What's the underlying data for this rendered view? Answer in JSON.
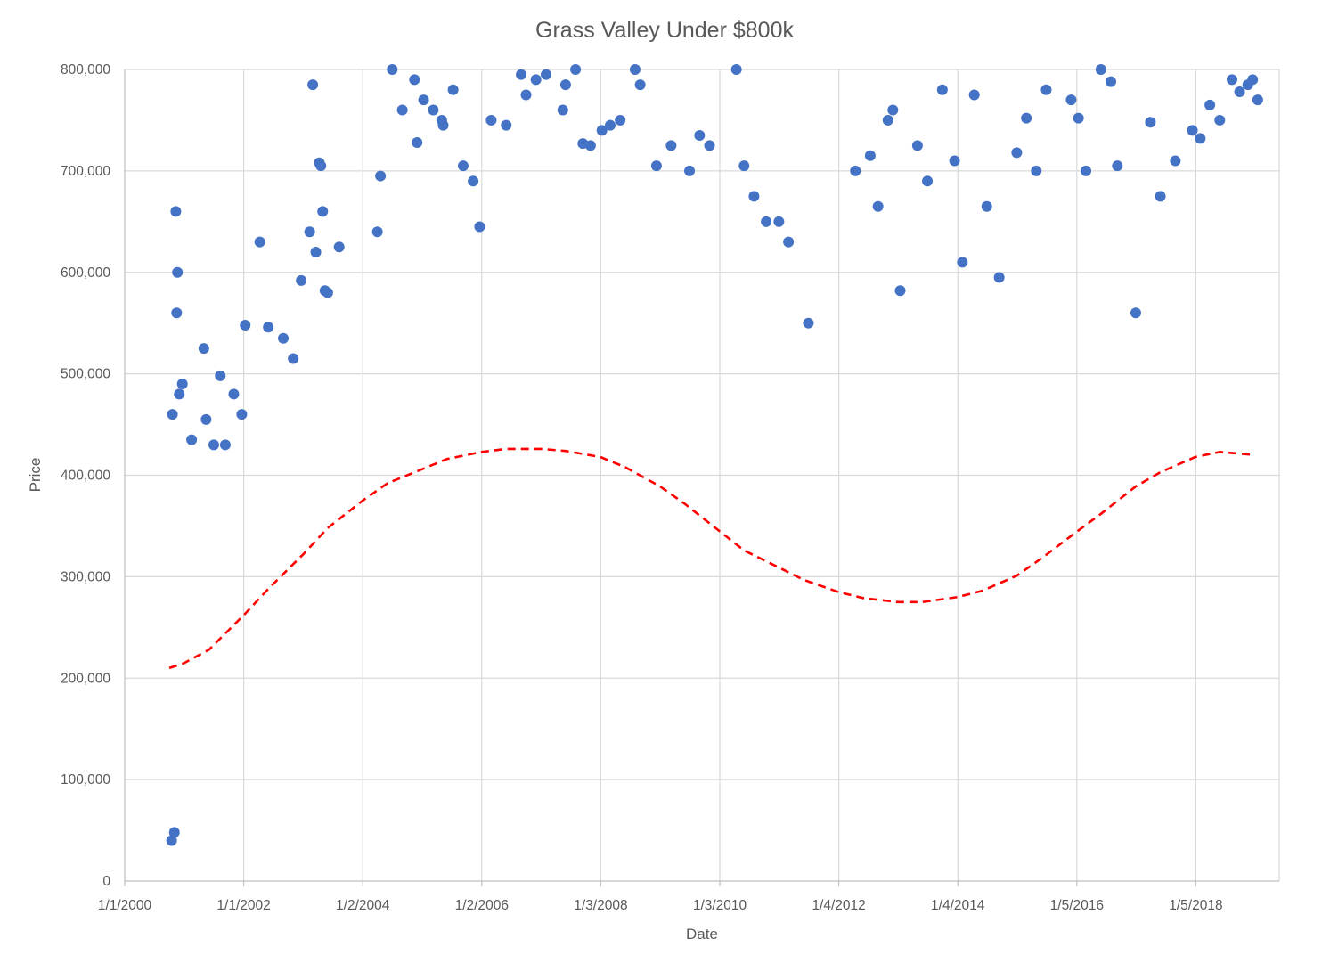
{
  "chart_data": {
    "type": "scatter",
    "title": "Grass Valley Under $800k",
    "xlabel": "Date",
    "ylabel": "Price",
    "xlim": [
      "1/1/2000",
      "6/1/2019"
    ],
    "ylim": [
      0,
      800000
    ],
    "x_ticks": [
      "1/1/2000",
      "1/1/2002",
      "1/2/2004",
      "1/2/2006",
      "1/3/2008",
      "1/3/2010",
      "1/4/2012",
      "1/4/2014",
      "1/5/2016",
      "1/5/2018"
    ],
    "y_ticks": [
      0,
      100000,
      200000,
      300000,
      400000,
      500000,
      600000,
      700000,
      800000
    ],
    "y_tick_labels": [
      "0",
      "100,000",
      "200,000",
      "300,000",
      "400,000",
      "500,000",
      "600,000",
      "700,000",
      "800,000"
    ],
    "grid": true,
    "legend": "none",
    "series": [
      {
        "marker_color": "#4472c4",
        "marker": "circle",
        "points": [
          [
            "10/15/2000",
            40000
          ],
          [
            "11/1/2000",
            48000
          ],
          [
            "11/10/2000",
            660000
          ],
          [
            "11/20/2000",
            600000
          ],
          [
            "11/15/2000",
            560000
          ],
          [
            "10/20/2000",
            460000
          ],
          [
            "12/1/2000",
            480000
          ],
          [
            "12/20/2000",
            490000
          ],
          [
            "2/15/2001",
            435000
          ],
          [
            "5/1/2001",
            525000
          ],
          [
            "5/15/2001",
            455000
          ],
          [
            "7/1/2001",
            430000
          ],
          [
            "8/10/2001",
            498000
          ],
          [
            "9/10/2001",
            430000
          ],
          [
            "11/1/2001",
            480000
          ],
          [
            "12/20/2001",
            460000
          ],
          [
            "1/10/2002",
            548000
          ],
          [
            "4/10/2002",
            630000
          ],
          [
            "6/1/2002",
            546000
          ],
          [
            "9/1/2002",
            535000
          ],
          [
            "11/1/2002",
            515000
          ],
          [
            "12/20/2002",
            592000
          ],
          [
            "2/10/2003",
            640000
          ],
          [
            "3/1/2003",
            785000
          ],
          [
            "3/20/2003",
            620000
          ],
          [
            "4/10/2003",
            708000
          ],
          [
            "4/20/2003",
            705000
          ],
          [
            "5/1/2003",
            660000
          ],
          [
            "5/15/2003",
            582000
          ],
          [
            "6/1/2003",
            580000
          ],
          [
            "8/10/2003",
            625000
          ],
          [
            "4/1/2004",
            640000
          ],
          [
            "4/20/2004",
            695000
          ],
          [
            "7/1/2004",
            800000
          ],
          [
            "9/1/2004",
            760000
          ],
          [
            "11/15/2004",
            790000
          ],
          [
            "12/1/2004",
            728000
          ],
          [
            "1/10/2005",
            770000
          ],
          [
            "3/10/2005",
            760000
          ],
          [
            "5/1/2005",
            750000
          ],
          [
            "5/10/2005",
            745000
          ],
          [
            "7/10/2005",
            780000
          ],
          [
            "9/10/2005",
            705000
          ],
          [
            "11/10/2005",
            690000
          ],
          [
            "12/20/2005",
            645000
          ],
          [
            "3/1/2006",
            750000
          ],
          [
            "6/1/2006",
            745000
          ],
          [
            "9/1/2006",
            795000
          ],
          [
            "10/1/2006",
            775000
          ],
          [
            "12/1/2006",
            790000
          ],
          [
            "2/1/2007",
            795000
          ],
          [
            "5/15/2007",
            760000
          ],
          [
            "6/1/2007",
            785000
          ],
          [
            "8/1/2007",
            800000
          ],
          [
            "9/15/2007",
            727000
          ],
          [
            "11/1/2007",
            725000
          ],
          [
            "1/10/2008",
            740000
          ],
          [
            "3/1/2008",
            745000
          ],
          [
            "5/1/2008",
            750000
          ],
          [
            "8/1/2008",
            800000
          ],
          [
            "9/1/2008",
            785000
          ],
          [
            "12/10/2008",
            705000
          ],
          [
            "3/10/2009",
            725000
          ],
          [
            "7/1/2009",
            700000
          ],
          [
            "9/1/2009",
            735000
          ],
          [
            "11/1/2009",
            725000
          ],
          [
            "4/15/2010",
            800000
          ],
          [
            "6/1/2010",
            705000
          ],
          [
            "8/1/2010",
            675000
          ],
          [
            "10/15/2010",
            650000
          ],
          [
            "1/1/2011",
            650000
          ],
          [
            "3/1/2011",
            630000
          ],
          [
            "7/1/2011",
            550000
          ],
          [
            "4/15/2012",
            700000
          ],
          [
            "7/15/2012",
            715000
          ],
          [
            "9/1/2012",
            665000
          ],
          [
            "11/1/2012",
            750000
          ],
          [
            "12/1/2012",
            760000
          ],
          [
            "1/15/2013",
            582000
          ],
          [
            "5/1/2013",
            725000
          ],
          [
            "7/1/2013",
            690000
          ],
          [
            "10/1/2013",
            780000
          ],
          [
            "12/15/2013",
            710000
          ],
          [
            "2/1/2014",
            610000
          ],
          [
            "4/15/2014",
            775000
          ],
          [
            "7/1/2014",
            665000
          ],
          [
            "9/15/2014",
            595000
          ],
          [
            "1/1/2015",
            718000
          ],
          [
            "3/1/2015",
            752000
          ],
          [
            "5/1/2015",
            700000
          ],
          [
            "7/1/2015",
            780000
          ],
          [
            "12/1/2015",
            770000
          ],
          [
            "1/15/2016",
            752000
          ],
          [
            "3/1/2016",
            700000
          ],
          [
            "6/1/2016",
            800000
          ],
          [
            "8/1/2016",
            788000
          ],
          [
            "9/10/2016",
            705000
          ],
          [
            "1/1/2017",
            560000
          ],
          [
            "4/1/2017",
            748000
          ],
          [
            "6/1/2017",
            675000
          ],
          [
            "9/1/2017",
            710000
          ],
          [
            "12/15/2017",
            740000
          ],
          [
            "2/1/2018",
            732000
          ],
          [
            "4/1/2018",
            765000
          ],
          [
            "6/1/2018",
            750000
          ],
          [
            "8/15/2018",
            790000
          ],
          [
            "10/1/2018",
            778000
          ],
          [
            "11/20/2018",
            785000
          ],
          [
            "12/20/2018",
            790000
          ],
          [
            "1/20/2019",
            770000
          ]
        ]
      }
    ],
    "trendline": {
      "type": "polynomial",
      "color": "#ff0000",
      "dash": "dashed",
      "points": [
        [
          "10/1/2000",
          210000
        ],
        [
          "1/1/2001",
          215000
        ],
        [
          "6/1/2001",
          228000
        ],
        [
          "1/1/2002",
          262000
        ],
        [
          "6/1/2002",
          288000
        ],
        [
          "1/1/2003",
          322000
        ],
        [
          "6/1/2003",
          348000
        ],
        [
          "1/1/2004",
          375000
        ],
        [
          "6/1/2004",
          392000
        ],
        [
          "1/1/2005",
          406000
        ],
        [
          "6/1/2005",
          416000
        ],
        [
          "1/1/2006",
          423000
        ],
        [
          "6/1/2006",
          426000
        ],
        [
          "1/1/2007",
          426000
        ],
        [
          "6/1/2007",
          424000
        ],
        [
          "1/1/2008",
          418000
        ],
        [
          "6/1/2008",
          408000
        ],
        [
          "1/1/2009",
          389000
        ],
        [
          "6/1/2009",
          372000
        ],
        [
          "1/1/2010",
          345000
        ],
        [
          "6/1/2010",
          326000
        ],
        [
          "1/1/2011",
          309000
        ],
        [
          "6/1/2011",
          297000
        ],
        [
          "1/1/2012",
          285000
        ],
        [
          "6/1/2012",
          279000
        ],
        [
          "1/1/2013",
          275000
        ],
        [
          "6/1/2013",
          275000
        ],
        [
          "1/1/2014",
          280000
        ],
        [
          "6/1/2014",
          286000
        ],
        [
          "1/1/2015",
          301000
        ],
        [
          "6/1/2015",
          318000
        ],
        [
          "1/1/2016",
          344000
        ],
        [
          "6/1/2016",
          362000
        ],
        [
          "1/1/2017",
          389000
        ],
        [
          "6/1/2017",
          403000
        ],
        [
          "1/1/2018",
          418000
        ],
        [
          "6/1/2018",
          423000
        ],
        [
          "1/1/2019",
          420000
        ]
      ]
    }
  }
}
